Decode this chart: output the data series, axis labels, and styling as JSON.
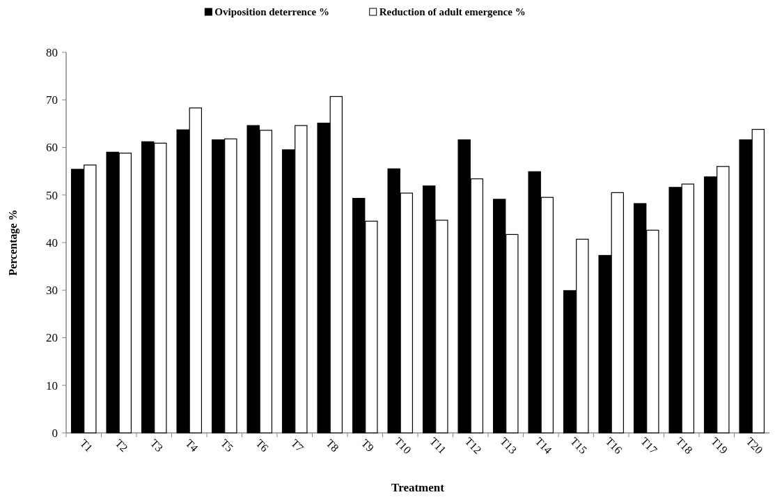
{
  "chart_data": {
    "type": "bar",
    "xlabel": "Treatment",
    "ylabel": "Percentage %",
    "categories": [
      "T1",
      "T2",
      "T3",
      "T4",
      "T5",
      "T6",
      "T7",
      "T8",
      "T9",
      "T10",
      "T11",
      "T12",
      "T13",
      "T14",
      "T15",
      "T16",
      "T17",
      "T18",
      "T19",
      "T20"
    ],
    "series": [
      {
        "name": "Oviposition deterrence %",
        "color": "#000000",
        "values": [
          55.4,
          59,
          61.2,
          63.7,
          61.6,
          64.6,
          59.5,
          65.1,
          49.3,
          55.5,
          51.9,
          61.6,
          49.1,
          54.9,
          29.9,
          37.3,
          48.2,
          51.6,
          53.8,
          61.6
        ]
      },
      {
        "name": "Reduction of adult emergence %",
        "color": "#ffffff",
        "values": [
          56.3,
          58.8,
          60.9,
          68.3,
          61.8,
          63.6,
          64.6,
          70.7,
          44.5,
          50.4,
          44.7,
          53.4,
          41.7,
          49.5,
          40.7,
          50.5,
          42.6,
          52.3,
          56,
          63.8
        ]
      }
    ],
    "ylim": [
      0,
      80
    ],
    "yticks": [
      0,
      10,
      20,
      30,
      40,
      50,
      60,
      70,
      80
    ],
    "grid": false,
    "legend": "top"
  }
}
